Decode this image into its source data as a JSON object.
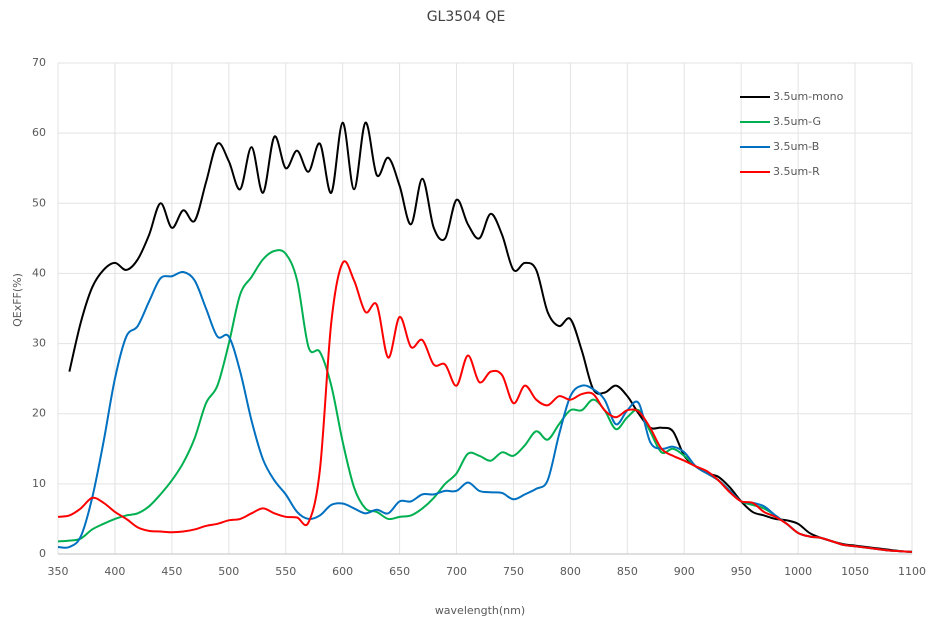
{
  "chart_data": {
    "type": "line",
    "title": "GL3504 QE",
    "x_label": "wavelength(nm)",
    "y_label": "QExFF(%)",
    "xlim": [
      350,
      1100
    ],
    "ylim": [
      0,
      70
    ],
    "xticks": [
      350,
      400,
      450,
      500,
      550,
      600,
      650,
      700,
      750,
      800,
      850,
      900,
      950,
      1000,
      1050,
      1100
    ],
    "yticks": [
      0,
      10,
      20,
      30,
      40,
      50,
      60,
      70
    ],
    "grid": true,
    "legend": "top-right",
    "x": [
      350,
      360,
      370,
      380,
      390,
      400,
      410,
      420,
      430,
      440,
      450,
      460,
      470,
      480,
      490,
      500,
      510,
      520,
      530,
      540,
      550,
      560,
      570,
      580,
      590,
      600,
      610,
      620,
      630,
      640,
      650,
      660,
      670,
      680,
      690,
      700,
      710,
      720,
      730,
      740,
      750,
      760,
      770,
      780,
      790,
      800,
      810,
      820,
      830,
      840,
      850,
      860,
      870,
      880,
      890,
      900,
      910,
      920,
      930,
      940,
      950,
      960,
      970,
      980,
      990,
      1000,
      1010,
      1020,
      1030,
      1040,
      1050,
      1060,
      1070,
      1080,
      1090,
      1100
    ],
    "series": [
      {
        "name": "3.5um-mono",
        "color": "#000000",
        "values": [
          null,
          26,
          33,
          38,
          40.5,
          41.5,
          40.5,
          42,
          45.5,
          50,
          46.5,
          49,
          47.5,
          53,
          58.5,
          56,
          52,
          58,
          51.5,
          59.5,
          55,
          57.5,
          54.5,
          58.5,
          51.5,
          61.5,
          52,
          61.5,
          54,
          56.5,
          52.5,
          47,
          53.5,
          46.5,
          45,
          50.5,
          47,
          45,
          48.5,
          45.5,
          40.5,
          41.5,
          40.5,
          34.5,
          32.5,
          33.5,
          29,
          23.5,
          23,
          24,
          22.5,
          20,
          18,
          18,
          17.5,
          14,
          12.5,
          11.5,
          11,
          9.5,
          7.5,
          6,
          5.5,
          5,
          4.8,
          4.3,
          3,
          2.3,
          1.8,
          1.4,
          1.2,
          1,
          0.8,
          0.6,
          0.4,
          0.3
        ]
      },
      {
        "name": "3.5um-G",
        "color": "#00b050",
        "values": [
          1.8,
          1.9,
          2.2,
          3.5,
          4.3,
          5,
          5.5,
          5.8,
          6.8,
          8.5,
          10.5,
          13,
          16.5,
          21.5,
          24,
          30,
          37,
          39.5,
          42,
          43.2,
          42.8,
          39,
          29.5,
          28.8,
          24,
          16,
          9.5,
          6.5,
          6,
          5,
          5.3,
          5.5,
          6.5,
          8,
          10,
          11.5,
          14.3,
          14,
          13.3,
          14.5,
          14,
          15.5,
          17.5,
          16.3,
          18.5,
          20.5,
          20.5,
          22,
          20.5,
          17.8,
          19.5,
          20.5,
          17.5,
          14.5,
          15,
          14,
          12.5,
          11.5,
          10.5,
          9,
          7.5,
          7,
          6.5,
          5.5,
          4.3,
          3,
          2.5,
          2.3,
          1.8,
          1.3,
          1.1,
          0.9,
          0.7,
          0.5,
          0.4,
          0.3
        ]
      },
      {
        "name": "3.5um-B",
        "color": "#0070c0",
        "values": [
          1,
          1,
          2.5,
          8,
          16,
          25,
          31,
          32.5,
          36,
          39.3,
          39.6,
          40.2,
          39,
          35,
          31,
          31,
          26,
          19,
          13.5,
          10.5,
          8.5,
          6,
          5,
          5.5,
          7,
          7.2,
          6.5,
          5.8,
          6.3,
          5.8,
          7.5,
          7.5,
          8.5,
          8.5,
          9,
          9,
          10.2,
          9,
          8.8,
          8.7,
          7.8,
          8.5,
          9.3,
          10.5,
          17,
          22.5,
          24,
          23.5,
          22,
          18.5,
          20.5,
          21.5,
          16,
          15,
          15.3,
          14.5,
          12.5,
          11.5,
          10.5,
          9,
          7.5,
          7.3,
          6.8,
          5.5,
          4.3,
          3,
          2.5,
          2.3,
          1.8,
          1.3,
          1.1,
          0.9,
          0.7,
          0.5,
          0.4,
          0.3
        ]
      },
      {
        "name": "3.5um-R",
        "color": "#ff0000",
        "values": [
          5.3,
          5.5,
          6.5,
          8,
          7.3,
          6,
          5,
          3.8,
          3.3,
          3.2,
          3.1,
          3.2,
          3.5,
          4,
          4.3,
          4.8,
          5,
          5.8,
          6.5,
          5.8,
          5.3,
          5.2,
          4.5,
          12,
          33,
          41.5,
          39,
          34.5,
          35.5,
          28,
          33.8,
          29.5,
          30.5,
          27,
          27,
          24,
          28.3,
          24.5,
          26,
          25.5,
          21.5,
          24,
          22,
          21.2,
          22.5,
          22,
          22.8,
          22.8,
          20.5,
          19.5,
          20.5,
          20.3,
          18,
          15,
          14,
          13.3,
          12.5,
          11.8,
          10.5,
          8.8,
          7.5,
          7.3,
          6,
          5.3,
          4.3,
          3,
          2.5,
          2.3,
          1.8,
          1.3,
          1.1,
          0.9,
          0.7,
          0.5,
          0.4,
          0.3
        ]
      }
    ]
  }
}
